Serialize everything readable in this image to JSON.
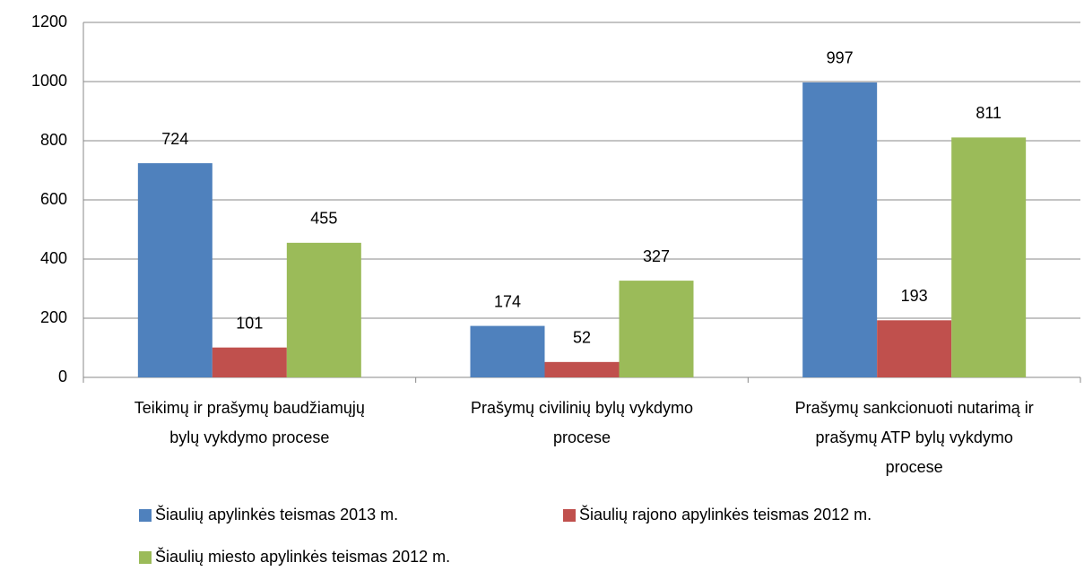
{
  "chart_data": {
    "type": "bar",
    "categories": [
      "Teikimų ir prašymų baudžiamųjų\nbylų vykdymo procese",
      "Prašymų civilinių bylų vykdymo\nprocese",
      "Prašymų sankcionuoti nutarimą ir\nprašymų ATP bylų vykdymo\nprocese"
    ],
    "series": [
      {
        "name": "Šiaulių apylinkės teismas 2013 m.",
        "color": "#4f81bd",
        "values": [
          724,
          174,
          997
        ]
      },
      {
        "name": "Šiaulių rajono apylinkės teismas 2012 m.",
        "color": "#c0504d",
        "values": [
          101,
          52,
          193
        ]
      },
      {
        "name": "Šiaulių miesto apylinkės teismas 2012 m.",
        "color": "#9bbb59",
        "values": [
          455,
          327,
          811
        ]
      }
    ],
    "ylim": [
      0,
      1200
    ],
    "yticks": [
      0,
      200,
      400,
      600,
      800,
      1000,
      1200
    ],
    "grid": true
  }
}
